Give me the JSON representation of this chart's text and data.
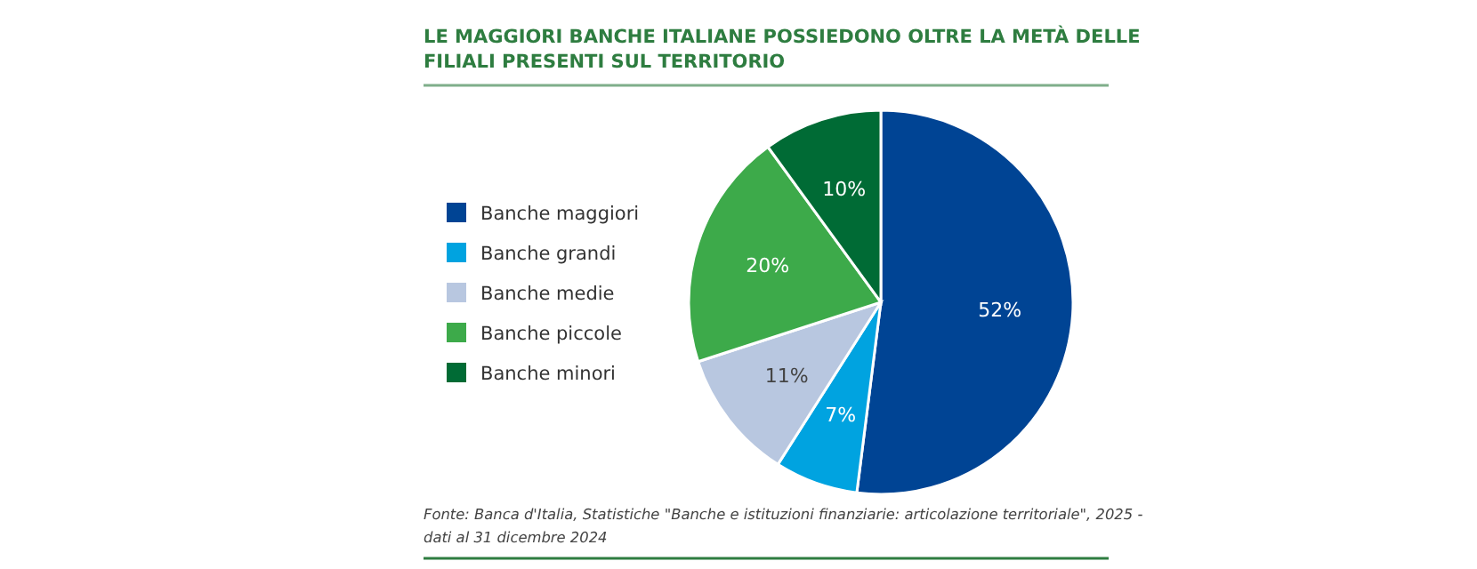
{
  "chart_data": {
    "type": "pie",
    "title": "LE MAGGIORI BANCHE ITALIANE POSSIEDONO OLTRE LA METÀ DELLE FILIALI PRESENTI SUL TERRITORIO",
    "categories": [
      "Banche maggiori",
      "Banche grandi",
      "Banche medie",
      "Banche piccole",
      "Banche minori"
    ],
    "values": [
      52,
      7,
      11,
      20,
      10
    ],
    "colors": [
      "#004494",
      "#00a3e0",
      "#b8c7e0",
      "#3daa4a",
      "#006b35"
    ],
    "value_labels": [
      "52%",
      "7%",
      "11%",
      "20%",
      "10%"
    ],
    "legend": "left",
    "annotations": [
      "Fonte: Banca d'Italia, Statistiche \"Banche e istituzioni finanziarie: articolazione territoriale\", 2025 - dati al 31 dicembre 2024"
    ]
  }
}
